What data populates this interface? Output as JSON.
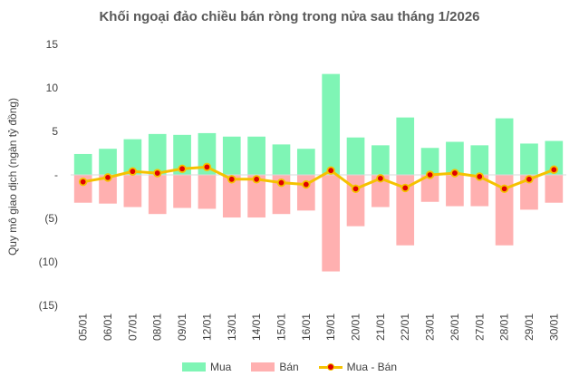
{
  "chart_data": {
    "type": "bar",
    "title": "Khối ngoại đảo chiều bán ròng trong nửa sau tháng 1/2026",
    "ylabel": "Quy mô giao dịch (ngàn tỷ đồng)",
    "xlabel": "",
    "ylim": [
      -15,
      15
    ],
    "yticks": [
      15,
      10,
      5,
      0,
      -5,
      -10,
      -15
    ],
    "ytick_labels": [
      "15",
      "10",
      "5",
      "-",
      "(5)",
      "(10)",
      "(15)"
    ],
    "grid": false,
    "legend_position": "bottom",
    "categories": [
      "05/01",
      "06/01",
      "07/01",
      "08/01",
      "09/01",
      "12/01",
      "13/01",
      "14/01",
      "15/01",
      "16/01",
      "19/01",
      "20/01",
      "21/01",
      "22/01",
      "23/01",
      "26/01",
      "27/01",
      "28/01",
      "29/01",
      "30/01"
    ],
    "series": [
      {
        "name": "Mua",
        "type": "bar",
        "color": "#7ff5b5",
        "values": [
          2.4,
          3.0,
          4.1,
          4.7,
          4.6,
          4.8,
          4.4,
          4.4,
          3.5,
          3.0,
          11.6,
          4.3,
          3.4,
          6.6,
          3.1,
          3.8,
          3.4,
          6.5,
          3.6,
          3.9
        ]
      },
      {
        "name": "Bán",
        "type": "bar",
        "color": "#ffb0b0",
        "values": [
          -3.2,
          -3.3,
          -3.7,
          -4.5,
          -3.8,
          -3.9,
          -4.9,
          -4.9,
          -4.5,
          -4.1,
          -11.1,
          -5.9,
          -3.7,
          -8.1,
          -3.1,
          -3.6,
          -3.6,
          -8.1,
          -4.0,
          -3.2
        ]
      },
      {
        "name": "Mua - Bán",
        "type": "line",
        "color": "#f5c200",
        "marker_color": "#e00000",
        "values": [
          -0.8,
          -0.3,
          0.4,
          0.2,
          0.7,
          0.9,
          -0.5,
          -0.5,
          -0.9,
          -1.1,
          0.5,
          -1.6,
          -0.4,
          -1.5,
          0.0,
          0.2,
          -0.2,
          -1.6,
          -0.5,
          0.6
        ]
      }
    ]
  }
}
